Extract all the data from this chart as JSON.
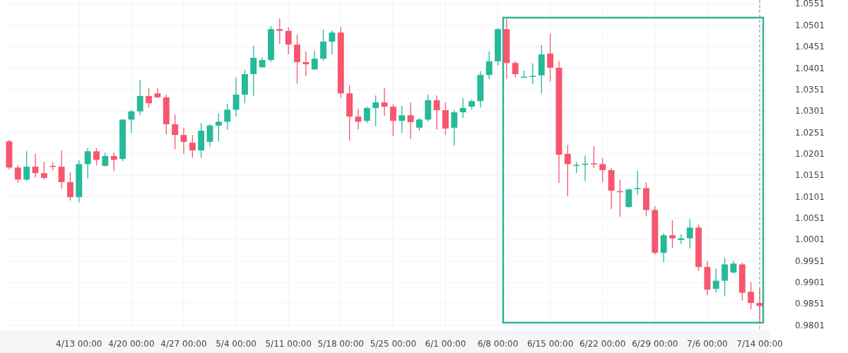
{
  "chart_data": {
    "type": "candlestick",
    "categories": [
      null,
      null,
      null,
      null,
      null,
      null,
      null,
      null,
      "4/13 00:00",
      null,
      null,
      null,
      null,
      null,
      "4/20 00:00",
      null,
      null,
      null,
      null,
      null,
      "4/27 00:00",
      null,
      null,
      null,
      null,
      null,
      "5/4 00:00",
      null,
      null,
      null,
      null,
      null,
      "5/11 00:00",
      null,
      null,
      null,
      null,
      null,
      "5/18 00:00",
      null,
      null,
      null,
      null,
      null,
      "5/25 00:00",
      null,
      null,
      null,
      null,
      null,
      "6/1 00:00",
      null,
      null,
      null,
      null,
      null,
      "6/8 00:00",
      null,
      null,
      null,
      null,
      null,
      "6/15 00:00",
      null,
      null,
      null,
      null,
      null,
      "6/22 00:00",
      null,
      null,
      null,
      null,
      null,
      "6/29 00:00",
      null,
      null,
      null,
      null,
      null,
      "7/6 00:00",
      null,
      null,
      null,
      null,
      null,
      "7/14 00:00"
    ],
    "ohlc": [
      [
        1.023,
        1.0234,
        1.0164,
        1.0169
      ],
      [
        1.0169,
        1.0174,
        1.0133,
        1.0141
      ],
      [
        1.0141,
        1.0207,
        1.0138,
        1.0171
      ],
      [
        1.0171,
        1.0201,
        1.0146,
        1.0156
      ],
      [
        1.0156,
        1.0182,
        1.0141,
        1.0145
      ],
      [
        1.0173,
        1.0181,
        1.0163,
        1.0172
      ],
      [
        1.0171,
        1.0209,
        1.012,
        1.0135
      ],
      [
        1.0135,
        1.0158,
        1.0092,
        1.01
      ],
      [
        1.01,
        1.0186,
        1.0088,
        1.0177
      ],
      [
        1.0177,
        1.0215,
        1.0143,
        1.0207
      ],
      [
        1.0207,
        1.0214,
        1.0174,
        1.0187
      ],
      [
        1.0173,
        1.0204,
        1.0171,
        1.0196
      ],
      [
        1.0196,
        1.0204,
        1.0161,
        1.0187
      ],
      [
        1.0189,
        1.0281,
        1.0184,
        1.0281
      ],
      [
        1.0281,
        1.0303,
        1.025,
        1.03
      ],
      [
        1.03,
        1.0374,
        1.0291,
        1.0336
      ],
      [
        1.0336,
        1.0354,
        1.0309,
        1.0319
      ],
      [
        1.0342,
        1.0354,
        1.0331,
        1.0333
      ],
      [
        1.0333,
        1.0339,
        1.0247,
        1.027
      ],
      [
        1.027,
        1.0293,
        1.0212,
        1.0245
      ],
      [
        1.0245,
        1.0262,
        1.0201,
        1.0229
      ],
      [
        1.0227,
        1.0245,
        1.0192,
        1.0209
      ],
      [
        1.0209,
        1.0273,
        1.0192,
        1.0255
      ],
      [
        1.0229,
        1.0271,
        1.0217,
        1.0267
      ],
      [
        1.0267,
        1.0295,
        1.023,
        1.0276
      ],
      [
        1.0276,
        1.0318,
        1.0257,
        1.0304
      ],
      [
        1.0304,
        1.0379,
        1.0288,
        1.0339
      ],
      [
        1.0339,
        1.0397,
        1.0319,
        1.0387
      ],
      [
        1.0387,
        1.0453,
        1.0336,
        1.0425
      ],
      [
        1.0403,
        1.0426,
        1.0402,
        1.042
      ],
      [
        1.042,
        1.0499,
        1.0415,
        1.0492
      ],
      [
        1.0492,
        1.0517,
        1.0458,
        1.0488
      ],
      [
        1.0488,
        1.0496,
        1.0433,
        1.0456
      ],
      [
        1.0456,
        1.0479,
        1.0365,
        1.0415
      ],
      [
        1.0415,
        1.044,
        1.0382,
        1.041
      ],
      [
        1.0398,
        1.0441,
        1.0397,
        1.0423
      ],
      [
        1.0423,
        1.0491,
        1.0418,
        1.0463
      ],
      [
        1.0463,
        1.0489,
        1.0433,
        1.0484
      ],
      [
        1.0484,
        1.0497,
        1.0331,
        1.0342
      ],
      [
        1.0342,
        1.0362,
        1.0232,
        1.0288
      ],
      [
        1.0288,
        1.0306,
        1.0258,
        1.0276
      ],
      [
        1.0278,
        1.0311,
        1.0273,
        1.0308
      ],
      [
        1.0308,
        1.0337,
        1.0265,
        1.0321
      ],
      [
        1.0321,
        1.0354,
        1.029,
        1.0311
      ],
      [
        1.0311,
        1.0316,
        1.0242,
        1.0278
      ],
      [
        1.0278,
        1.0313,
        1.025,
        1.0291
      ],
      [
        1.0291,
        1.0321,
        1.0235,
        1.0275
      ],
      [
        1.0262,
        1.0285,
        1.0255,
        1.0281
      ],
      [
        1.0281,
        1.0339,
        1.0276,
        1.0326
      ],
      [
        1.0326,
        1.0337,
        1.0258,
        1.0303
      ],
      [
        1.0303,
        1.0321,
        1.0245,
        1.026
      ],
      [
        1.0262,
        1.0304,
        1.022,
        1.0298
      ],
      [
        1.0298,
        1.0331,
        1.0285,
        1.0308
      ],
      [
        1.0311,
        1.0328,
        1.0304,
        1.0324
      ],
      [
        1.0324,
        1.0394,
        1.0309,
        1.0385
      ],
      [
        1.0385,
        1.044,
        1.0375,
        1.0417
      ],
      [
        1.0417,
        1.0494,
        1.0407,
        1.0492
      ],
      [
        1.0492,
        1.0516,
        1.0375,
        1.0413
      ],
      [
        1.0413,
        1.0417,
        1.0379,
        1.0387
      ],
      [
        1.038,
        1.0395,
        1.0379,
        1.0381
      ],
      [
        1.0382,
        1.0412,
        1.0364,
        1.0383
      ],
      [
        1.0384,
        1.0455,
        1.0342,
        1.0433
      ],
      [
        1.0435,
        1.0481,
        1.037,
        1.0402
      ],
      [
        1.0402,
        1.0418,
        1.0133,
        1.0199
      ],
      [
        1.0201,
        1.0222,
        1.0102,
        1.0177
      ],
      [
        1.0174,
        1.0182,
        1.0156,
        1.0175
      ],
      [
        1.0177,
        1.0197,
        1.0138,
        1.0178
      ],
      [
        1.0179,
        1.0219,
        1.0168,
        1.0178
      ],
      [
        1.0177,
        1.0191,
        1.0135,
        1.0163
      ],
      [
        1.0163,
        1.0168,
        1.0072,
        1.0115
      ],
      [
        1.0114,
        1.0141,
        1.0054,
        1.0113
      ],
      [
        1.0077,
        1.012,
        1.0075,
        1.0118
      ],
      [
        1.012,
        1.0161,
        1.0105,
        1.0121
      ],
      [
        1.0121,
        1.0135,
        1.0055,
        1.007
      ],
      [
        1.007,
        1.0079,
        0.9966,
        0.997
      ],
      [
        0.997,
        1.0016,
        0.9948,
        1.0011
      ],
      [
        1.0011,
        1.0046,
        0.9981,
        1.0004
      ],
      [
        1.0,
        1.0013,
        0.9991,
        1.0004
      ],
      [
        1.0004,
        1.0049,
        0.998,
        1.0029
      ],
      [
        1.0029,
        1.0036,
        0.9928,
        0.9937
      ],
      [
        0.9937,
        0.9951,
        0.9871,
        0.9884
      ],
      [
        0.9886,
        0.9933,
        0.9877,
        0.9905
      ],
      [
        0.9905,
        0.9958,
        0.9869,
        0.9943
      ],
      [
        0.9924,
        0.9951,
        0.9922,
        0.9945
      ],
      [
        0.9943,
        0.9947,
        0.9858,
        0.9877
      ],
      [
        0.9879,
        0.9902,
        0.9838,
        0.9853
      ],
      [
        0.9853,
        0.9887,
        0.9806,
        0.9846
      ]
    ],
    "ylim": [
      0.9789,
      1.056
    ],
    "yticks": [
      0.9801,
      0.9851,
      0.9901,
      0.9951,
      1.0001,
      1.0051,
      1.0101,
      1.0151,
      1.0201,
      1.0251,
      1.0301,
      1.0351,
      1.0401,
      1.0451,
      1.0501,
      1.0551
    ],
    "grid": true,
    "ref_lines": [
      {
        "axis": "x",
        "value": "7/14 00:00",
        "color": "#888888",
        "line_style": "dashed"
      }
    ]
  }
}
